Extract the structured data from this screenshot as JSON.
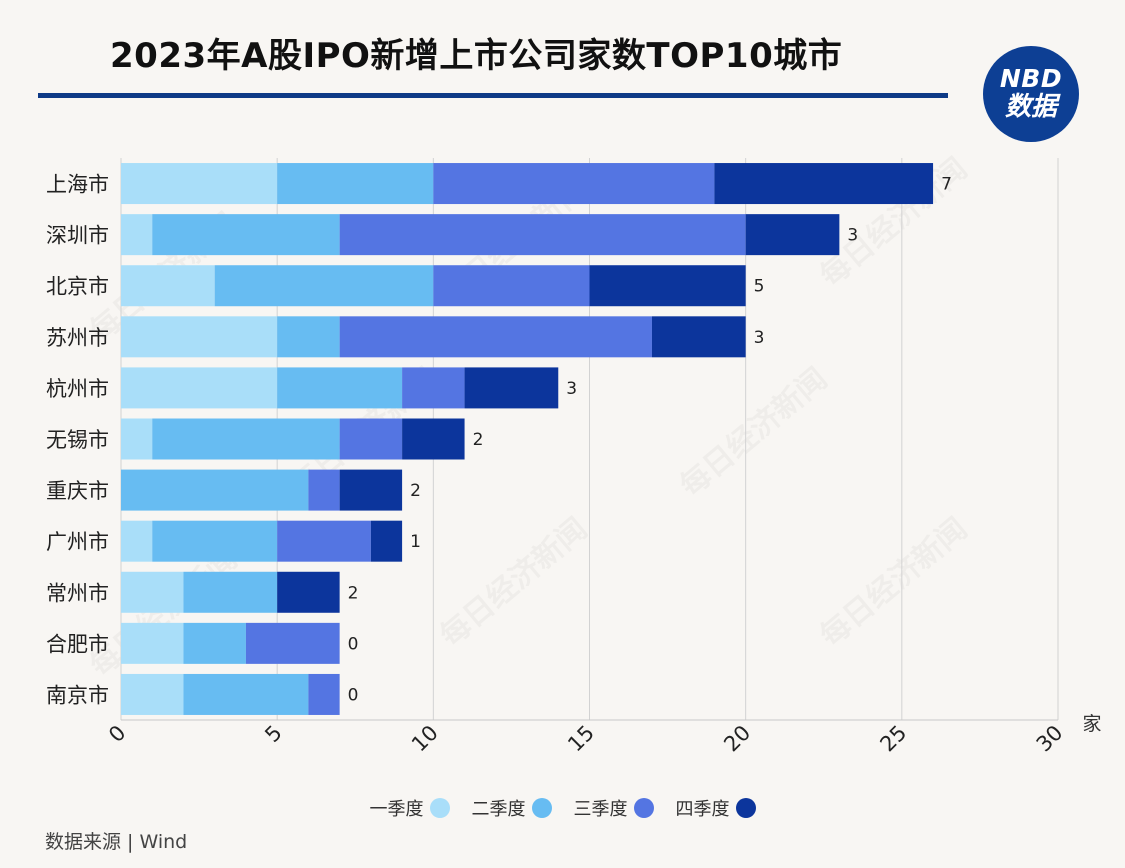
{
  "title": "2023年A股IPO新增上市公司家数TOP10城市",
  "logo": {
    "line1": "NBD",
    "line2": "数据",
    "color": "#0d3f94"
  },
  "source": "数据来源 | Wind",
  "watermark": "每日经济新闻",
  "chart_data": {
    "type": "bar",
    "orientation": "horizontal",
    "stacked": true,
    "categories": [
      "上海市",
      "深圳市",
      "北京市",
      "苏州市",
      "杭州市",
      "无锡市",
      "重庆市",
      "广州市",
      "常州市",
      "合肥市",
      "南京市"
    ],
    "series": [
      {
        "name": "一季度",
        "color": "#a9def9",
        "values": [
          5,
          1,
          3,
          5,
          5,
          1,
          0,
          1,
          2,
          2,
          2
        ]
      },
      {
        "name": "二季度",
        "color": "#67bcf2",
        "values": [
          5,
          6,
          7,
          2,
          4,
          6,
          6,
          4,
          3,
          2,
          4
        ]
      },
      {
        "name": "三季度",
        "color": "#5475e2",
        "values": [
          9,
          13,
          5,
          10,
          2,
          2,
          1,
          3,
          0,
          3,
          1
        ]
      },
      {
        "name": "四季度",
        "color": "#0c359c",
        "values": [
          7,
          3,
          5,
          3,
          3,
          2,
          2,
          1,
          2,
          0,
          0
        ]
      }
    ],
    "end_labels": [
      "7",
      "3",
      "5",
      "3",
      "3",
      "2",
      "2",
      "1",
      "2",
      "0",
      "0"
    ],
    "xlim": [
      0,
      30
    ],
    "xticks": [
      "0",
      "5",
      "10",
      "15",
      "20",
      "25",
      "30"
    ],
    "x_unit": "家",
    "grid": true,
    "legend_position": "bottom"
  }
}
